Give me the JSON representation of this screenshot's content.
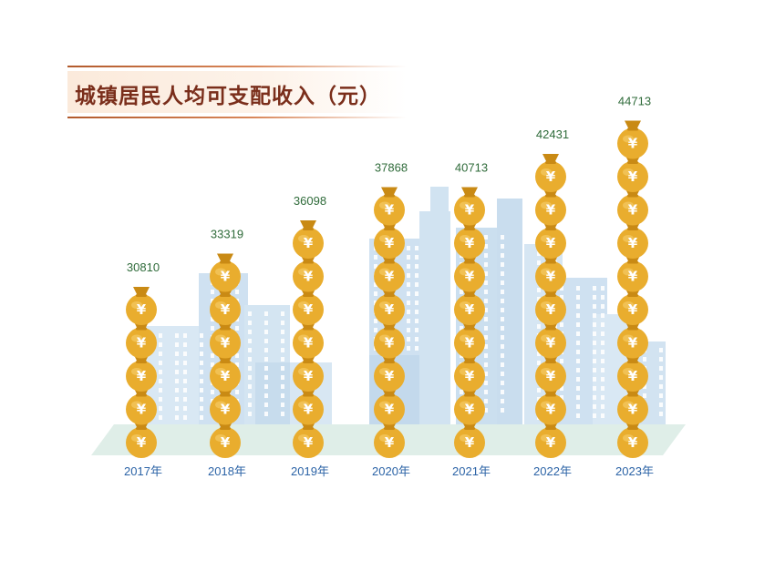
{
  "chart_data": {
    "type": "bar",
    "title": "城镇居民人均可支配收入（元）",
    "categories": [
      "2017年",
      "2018年",
      "2019年",
      "2020年",
      "2021年",
      "2022年",
      "2023年"
    ],
    "values": [
      30810,
      33319,
      36098,
      37868,
      40713,
      42431,
      44713
    ],
    "bags": [
      5,
      6,
      7,
      8,
      8,
      9,
      10
    ],
    "bag_symbol": "¥",
    "colors": {
      "bag": "#e9ad2e",
      "bag_dark": "#c98a14",
      "value_text": "#2f6b3a",
      "year_text": "#2b63a6",
      "title": "#7a2e1b",
      "city": "#cfe1f1",
      "ground": "#dfeee8"
    }
  }
}
